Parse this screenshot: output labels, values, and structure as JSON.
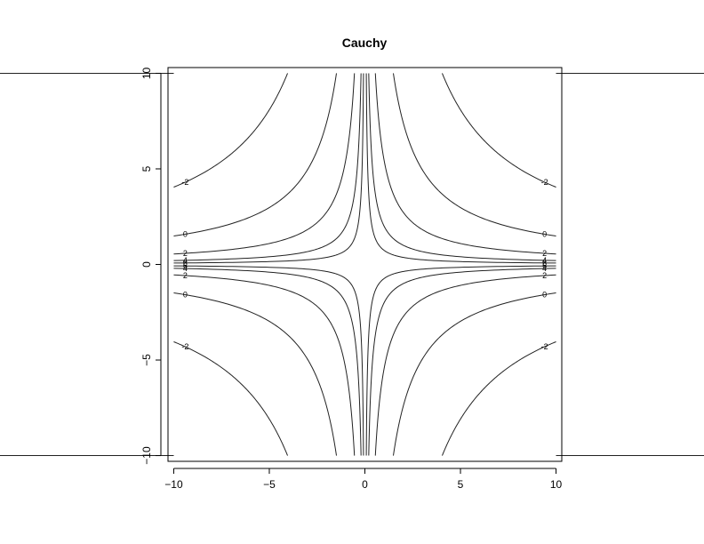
{
  "chart_data": {
    "type": "contour",
    "title": "Cauchy",
    "xlabel": "",
    "ylabel": "",
    "xlim": [
      -10.3,
      10.3
    ],
    "ylim": [
      -10.3,
      10.3
    ],
    "x_ticks": [
      -10,
      -5,
      0,
      5,
      10
    ],
    "y_ticks": [
      -10,
      -5,
      0,
      5,
      10
    ],
    "x_tick_labels": [
      "−10",
      "−5",
      "0",
      "5",
      "10"
    ],
    "y_tick_labels": [
      "−10",
      "−5",
      "0",
      "5",
      "10"
    ],
    "levels": [
      -8,
      -6,
      -4,
      -2,
      0,
      2,
      4,
      6
    ],
    "level_labels": [
      "-8",
      "-6",
      "-4",
      "-2",
      "0",
      "2",
      "4",
      "6"
    ],
    "line_color": "#222222",
    "grid": false,
    "legend": "none"
  }
}
